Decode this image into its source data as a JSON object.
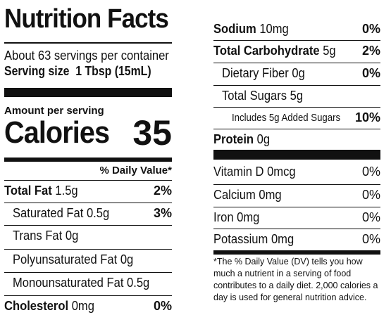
{
  "title": "Nutrition Facts",
  "servings_per_container": "About 63 servings per container",
  "serving_size_label": "Serving size",
  "serving_size_value": "1 Tbsp (15mL)",
  "amount_per_serving": "Amount per serving",
  "calories_label": "Calories",
  "calories_value": "35",
  "dv_header": "% Daily Value*",
  "left_rows": [
    {
      "name": "Total Fat",
      "amount": "1.5g",
      "dv": "2%"
    },
    {
      "name": "Saturated Fat",
      "amount": "0.5g",
      "dv": "3%"
    },
    {
      "name": "Trans Fat",
      "amount": "0g",
      "dv": ""
    },
    {
      "name": "Polyunsaturated Fat",
      "amount": "0g",
      "dv": ""
    },
    {
      "name": "Monounsaturated Fat",
      "amount": "0.5g",
      "dv": ""
    },
    {
      "name": "Cholesterol",
      "amount": "0mg",
      "dv": "0%"
    }
  ],
  "right_rows": [
    {
      "name": "Sodium",
      "amount": "10mg",
      "dv": "0%"
    },
    {
      "name": "Total Carbohydrate",
      "amount": "5g",
      "dv": "2%"
    },
    {
      "name": "Dietary Fiber",
      "amount": "0g",
      "dv": "0%"
    },
    {
      "name": "Total Sugars",
      "amount": "5g",
      "dv": ""
    },
    {
      "name": "Includes 5g Added Sugars",
      "amount": "",
      "dv": "10%"
    },
    {
      "name": "Protein",
      "amount": "0g",
      "dv": ""
    }
  ],
  "vitamins": [
    {
      "name": "Vitamin D",
      "amount": "0mcg",
      "dv": "0%"
    },
    {
      "name": "Calcium",
      "amount": "0mg",
      "dv": "0%"
    },
    {
      "name": "Iron",
      "amount": "0mg",
      "dv": "0%"
    },
    {
      "name": "Potassium",
      "amount": "0mg",
      "dv": "0%"
    }
  ],
  "footnote": "*The % Daily Value (DV) tells you how much a nutrient in a serving of food contributes to a daily diet. 2,000 calories a day is used for general nutrition advice."
}
